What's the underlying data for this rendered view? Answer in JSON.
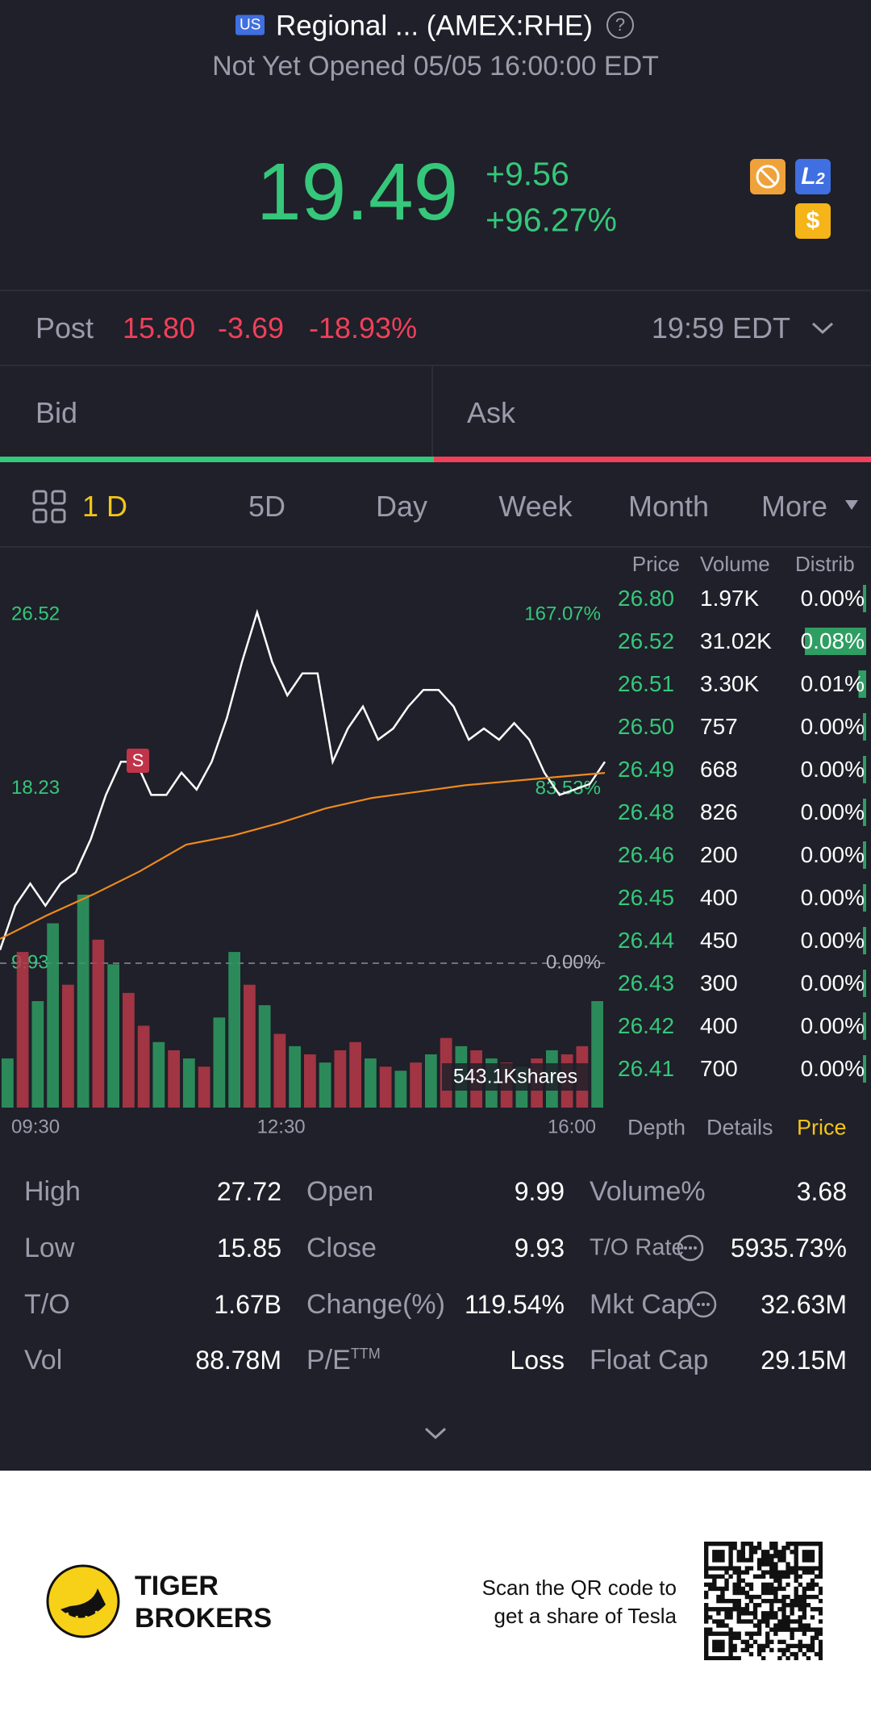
{
  "header": {
    "market": "US",
    "title": "Regional ... (AMEX:RHE)",
    "status": "Not Yet Opened 05/05 16:00:00 EDT"
  },
  "quote": {
    "price": "19.49",
    "change": "+9.56",
    "change_pct": "+96.27%"
  },
  "post": {
    "label": "Post",
    "price": "15.80",
    "change": "-3.69",
    "change_pct": "-18.93%",
    "time": "19:59 EDT"
  },
  "bid_ask": {
    "bid": "Bid",
    "ask": "Ask",
    "bid_ratio": 49.8
  },
  "tabs": [
    "1 D",
    "5D",
    "Day",
    "Week",
    "Month",
    "More"
  ],
  "chart_data": {
    "type": "line",
    "ylim": [
      9.93,
      26.52
    ],
    "yticks": [
      26.52,
      18.23,
      9.93
    ],
    "y2lim": [
      0,
      167.07
    ],
    "y2ticks": [
      {
        "value": 167.07,
        "label": "167.07%"
      },
      {
        "value": 83.53,
        "label": "83.53%"
      },
      {
        "value": 0,
        "label": "0.00%"
      }
    ],
    "xticks": [
      "09:30",
      "12:30",
      "16:00"
    ],
    "series": [
      {
        "color": "#ffffff",
        "values": [
          10.56,
          12.67,
          13.72,
          12.67,
          13.72,
          14.25,
          15.83,
          17.94,
          19.52,
          19.52,
          17.94,
          17.94,
          19.0,
          18.2,
          19.52,
          21.6,
          24.26,
          26.63,
          24.26,
          22.68,
          23.73,
          23.73,
          19.52,
          21.1,
          22.15,
          20.57,
          21.1,
          22.15,
          22.94,
          22.94,
          22.15,
          20.57,
          21.1,
          20.57,
          21.36,
          20.57,
          19.0,
          17.94,
          18.2,
          18.46,
          19.52
        ]
      },
      {
        "color": "#f08a1c",
        "values": [
          11.09,
          12.2,
          13.2,
          14.3,
          15.57,
          16.0,
          16.6,
          17.3,
          17.8,
          18.1,
          18.4,
          18.6,
          18.8,
          18.99
        ]
      }
    ],
    "marker": "S",
    "volume": {
      "label": "543.1Kshares",
      "values": [
        120,
        380,
        260,
        450,
        300,
        520,
        410,
        350,
        280,
        200,
        160,
        140,
        120,
        100,
        220,
        380,
        300,
        250,
        180,
        150,
        130,
        110,
        140,
        160,
        120,
        100,
        90,
        110,
        130,
        170,
        150,
        140,
        120,
        110,
        100,
        120,
        140,
        130,
        150,
        260
      ],
      "colors": [
        "#2f9e63",
        "#b83a48",
        "#2f9e63",
        "#2f9e63",
        "#b83a48",
        "#2f9e63",
        "#b83a48",
        "#2f9e63",
        "#b83a48",
        "#b83a48",
        "#2f9e63",
        "#b83a48",
        "#2f9e63",
        "#b83a48",
        "#2f9e63",
        "#2f9e63",
        "#b83a48",
        "#2f9e63",
        "#b83a48",
        "#2f9e63",
        "#b83a48",
        "#2f9e63",
        "#b83a48",
        "#b83a48",
        "#2f9e63",
        "#b83a48",
        "#2f9e63",
        "#b83a48",
        "#2f9e63",
        "#b83a48",
        "#2f9e63",
        "#b83a48",
        "#2f9e63",
        "#b83a48",
        "#2f9e63",
        "#b83a48",
        "#2f9e63",
        "#b83a48",
        "#b83a48",
        "#2f9e63"
      ]
    }
  },
  "order_book": {
    "headers": [
      "Price",
      "Volume",
      "Distrib"
    ],
    "rows": [
      [
        "26.80",
        "1.97K",
        "0.00%"
      ],
      [
        "26.52",
        "31.02K",
        "0.08%"
      ],
      [
        "26.51",
        "3.30K",
        "0.01%"
      ],
      [
        "26.50",
        "757",
        "0.00%"
      ],
      [
        "26.49",
        "668",
        "0.00%"
      ],
      [
        "26.48",
        "826",
        "0.00%"
      ],
      [
        "26.46",
        "200",
        "0.00%"
      ],
      [
        "26.45",
        "400",
        "0.00%"
      ],
      [
        "26.44",
        "450",
        "0.00%"
      ],
      [
        "26.43",
        "300",
        "0.00%"
      ],
      [
        "26.42",
        "400",
        "0.00%"
      ],
      [
        "26.41",
        "700",
        "0.00%"
      ]
    ],
    "tabs": [
      "Depth",
      "Details",
      "Price"
    ]
  },
  "stats": [
    [
      {
        "label": "High",
        "value": "27.72"
      },
      {
        "label": "Open",
        "value": "9.99"
      },
      {
        "label": "Volume%",
        "value": "3.68"
      }
    ],
    [
      {
        "label": "Low",
        "value": "15.85"
      },
      {
        "label": "Close",
        "value": "9.93"
      },
      {
        "label": "T/O Rate",
        "value": "5935.73%"
      }
    ],
    [
      {
        "label": "T/O",
        "value": "1.67B"
      },
      {
        "label": "Change(%)",
        "value": "119.54%"
      },
      {
        "label": "Mkt Cap",
        "value": "32.63M"
      }
    ],
    [
      {
        "label": "Vol",
        "value": "88.78M"
      },
      {
        "label": "P/E",
        "sup": "TTM",
        "value": "Loss"
      },
      {
        "label": "Float Cap",
        "value": "29.15M"
      }
    ]
  ],
  "footer": {
    "brand_line1": "TIGER",
    "brand_line2": "BROKERS",
    "scan_line1": "Scan the QR code to",
    "scan_line2": "get a share of Tesla"
  }
}
